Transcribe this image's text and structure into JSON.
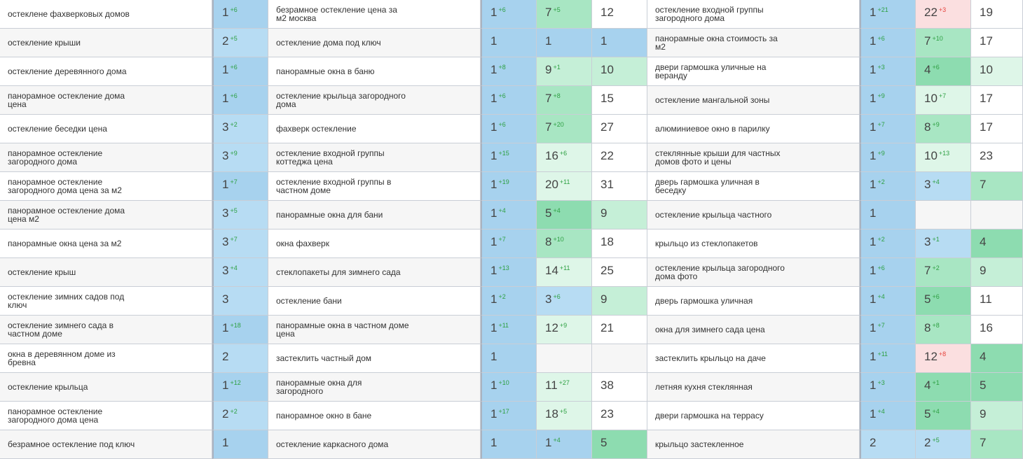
{
  "rows": [
    {
      "a": {
        "kw": "остеклене фахверковых домов",
        "p": {
          "v": "1",
          "d": "+6",
          "t": "up",
          "c": "blue1"
        }
      },
      "b": {
        "kw": "безрамное остекление цена за м2 москва",
        "p1": {
          "v": "1",
          "d": "+6",
          "t": "up",
          "c": "blue1"
        },
        "p2": {
          "v": "7",
          "d": "+5",
          "t": "up",
          "c": "green2"
        },
        "p3": {
          "v": "12",
          "d": "",
          "t": "",
          "c": "white"
        }
      },
      "c": {
        "kw": "остекление входной группы загородного дома",
        "p1": {
          "v": "1",
          "d": "+21",
          "t": "up",
          "c": "blue1"
        },
        "p2": {
          "v": "22",
          "d": "+3",
          "t": "dn",
          "c": "pink"
        },
        "p3": {
          "v": "19",
          "d": "",
          "t": "",
          "c": "white"
        }
      }
    },
    {
      "a": {
        "kw": "остекление крыши",
        "p": {
          "v": "2",
          "d": "+5",
          "t": "up",
          "c": "blue2"
        }
      },
      "b": {
        "kw": "остекление дома под ключ",
        "p1": {
          "v": "1",
          "d": "",
          "t": "",
          "c": "blue1"
        },
        "p2": {
          "v": "1",
          "d": "",
          "t": "",
          "c": "blue1"
        },
        "p3": {
          "v": "1",
          "d": "",
          "t": "",
          "c": "blue1"
        }
      },
      "c": {
        "kw": "панорамные окна стоимость за м2",
        "p1": {
          "v": "1",
          "d": "+6",
          "t": "up",
          "c": "blue1"
        },
        "p2": {
          "v": "7",
          "d": "+10",
          "t": "up",
          "c": "green2"
        },
        "p3": {
          "v": "17",
          "d": "",
          "t": "",
          "c": "white"
        }
      }
    },
    {
      "a": {
        "kw": "остекление деревянного дома",
        "p": {
          "v": "1",
          "d": "+6",
          "t": "up",
          "c": "blue1"
        }
      },
      "b": {
        "kw": "панорамные окна в баню",
        "p1": {
          "v": "1",
          "d": "+8",
          "t": "up",
          "c": "blue1"
        },
        "p2": {
          "v": "9",
          "d": "+1",
          "t": "up",
          "c": "green3"
        },
        "p3": {
          "v": "10",
          "d": "",
          "t": "",
          "c": "green3"
        }
      },
      "c": {
        "kw": "двери гармошка уличные на веранду",
        "p1": {
          "v": "1",
          "d": "+3",
          "t": "up",
          "c": "blue1"
        },
        "p2": {
          "v": "4",
          "d": "+6",
          "t": "up",
          "c": "green1"
        },
        "p3": {
          "v": "10",
          "d": "",
          "t": "",
          "c": "green4"
        }
      }
    },
    {
      "a": {
        "kw": "панорамное остекление дома цена",
        "p": {
          "v": "1",
          "d": "+6",
          "t": "up",
          "c": "blue1"
        }
      },
      "b": {
        "kw": "остекление крыльца загородного дома",
        "p1": {
          "v": "1",
          "d": "+6",
          "t": "up",
          "c": "blue1"
        },
        "p2": {
          "v": "7",
          "d": "+8",
          "t": "up",
          "c": "green2"
        },
        "p3": {
          "v": "15",
          "d": "",
          "t": "",
          "c": "white"
        }
      },
      "c": {
        "kw": "остекление мангальной зоны",
        "p1": {
          "v": "1",
          "d": "+9",
          "t": "up",
          "c": "blue1"
        },
        "p2": {
          "v": "10",
          "d": "+7",
          "t": "up",
          "c": "green4"
        },
        "p3": {
          "v": "17",
          "d": "",
          "t": "",
          "c": "white"
        }
      }
    },
    {
      "a": {
        "kw": "остекление беседки цена",
        "p": {
          "v": "3",
          "d": "+2",
          "t": "up",
          "c": "blue2"
        }
      },
      "b": {
        "kw": "фахверк остекление",
        "p1": {
          "v": "1",
          "d": "+6",
          "t": "up",
          "c": "blue1"
        },
        "p2": {
          "v": "7",
          "d": "+20",
          "t": "up",
          "c": "green2"
        },
        "p3": {
          "v": "27",
          "d": "",
          "t": "",
          "c": "white"
        }
      },
      "c": {
        "kw": "алюминиевое окно в парилку",
        "p1": {
          "v": "1",
          "d": "+7",
          "t": "up",
          "c": "blue1"
        },
        "p2": {
          "v": "8",
          "d": "+9",
          "t": "up",
          "c": "green2"
        },
        "p3": {
          "v": "17",
          "d": "",
          "t": "",
          "c": "white"
        }
      }
    },
    {
      "a": {
        "kw": "панорамное остекление загородного дома",
        "p": {
          "v": "3",
          "d": "+9",
          "t": "up",
          "c": "blue2"
        }
      },
      "b": {
        "kw": "остекление входной группы коттеджа цена",
        "p1": {
          "v": "1",
          "d": "+15",
          "t": "up",
          "c": "blue1"
        },
        "p2": {
          "v": "16",
          "d": "+6",
          "t": "up",
          "c": "green4"
        },
        "p3": {
          "v": "22",
          "d": "",
          "t": "",
          "c": "white"
        }
      },
      "c": {
        "kw": "стеклянные крыши для частных домов фото и цены",
        "p1": {
          "v": "1",
          "d": "+9",
          "t": "up",
          "c": "blue1"
        },
        "p2": {
          "v": "10",
          "d": "+13",
          "t": "up",
          "c": "green4"
        },
        "p3": {
          "v": "23",
          "d": "",
          "t": "",
          "c": "white"
        }
      }
    },
    {
      "a": {
        "kw": "панорамное остекление загородного дома цена за м2",
        "p": {
          "v": "1",
          "d": "+7",
          "t": "up",
          "c": "blue1"
        }
      },
      "b": {
        "kw": "остекление входной группы в частном доме",
        "p1": {
          "v": "1",
          "d": "+19",
          "t": "up",
          "c": "blue1"
        },
        "p2": {
          "v": "20",
          "d": "+11",
          "t": "up",
          "c": "green4"
        },
        "p3": {
          "v": "31",
          "d": "",
          "t": "",
          "c": "white"
        }
      },
      "c": {
        "kw": "дверь гармошка уличная в беседку",
        "p1": {
          "v": "1",
          "d": "+2",
          "t": "up",
          "c": "blue1"
        },
        "p2": {
          "v": "3",
          "d": "+4",
          "t": "up",
          "c": "blue2"
        },
        "p3": {
          "v": "7",
          "d": "",
          "t": "",
          "c": "green2"
        }
      }
    },
    {
      "a": {
        "kw": "панорамное остекление дома цена м2",
        "p": {
          "v": "3",
          "d": "+5",
          "t": "up",
          "c": "blue2"
        }
      },
      "b": {
        "kw": "панорамные окна для бани",
        "p1": {
          "v": "1",
          "d": "+4",
          "t": "up",
          "c": "blue1"
        },
        "p2": {
          "v": "5",
          "d": "+4",
          "t": "up",
          "c": "green1"
        },
        "p3": {
          "v": "9",
          "d": "",
          "t": "",
          "c": "green3"
        }
      },
      "c": {
        "kw": "остекление крыльца частного",
        "p1": {
          "v": "1",
          "d": "",
          "t": "",
          "c": "blue1"
        },
        "p2": {
          "v": "",
          "d": "",
          "t": "",
          "c": "grey"
        },
        "p3": {
          "v": "",
          "d": "",
          "t": "",
          "c": "grey"
        }
      }
    },
    {
      "a": {
        "kw": "панорамные окна цена за м2",
        "p": {
          "v": "3",
          "d": "+7",
          "t": "up",
          "c": "blue2"
        }
      },
      "b": {
        "kw": "окна фахверк",
        "p1": {
          "v": "1",
          "d": "+7",
          "t": "up",
          "c": "blue1"
        },
        "p2": {
          "v": "8",
          "d": "+10",
          "t": "up",
          "c": "green2"
        },
        "p3": {
          "v": "18",
          "d": "",
          "t": "",
          "c": "white"
        }
      },
      "c": {
        "kw": "крыльцо из стеклопакетов",
        "p1": {
          "v": "1",
          "d": "+2",
          "t": "up",
          "c": "blue1"
        },
        "p2": {
          "v": "3",
          "d": "+1",
          "t": "up",
          "c": "blue2"
        },
        "p3": {
          "v": "4",
          "d": "",
          "t": "",
          "c": "green1"
        }
      }
    },
    {
      "a": {
        "kw": "остекление крыш",
        "p": {
          "v": "3",
          "d": "+4",
          "t": "up",
          "c": "blue2"
        }
      },
      "b": {
        "kw": "стеклопакеты для зимнего сада",
        "p1": {
          "v": "1",
          "d": "+13",
          "t": "up",
          "c": "blue1"
        },
        "p2": {
          "v": "14",
          "d": "+11",
          "t": "up",
          "c": "green4"
        },
        "p3": {
          "v": "25",
          "d": "",
          "t": "",
          "c": "white"
        }
      },
      "c": {
        "kw": "остекление крыльца загородного дома фото",
        "p1": {
          "v": "1",
          "d": "+6",
          "t": "up",
          "c": "blue1"
        },
        "p2": {
          "v": "7",
          "d": "+2",
          "t": "up",
          "c": "green2"
        },
        "p3": {
          "v": "9",
          "d": "",
          "t": "",
          "c": "green3"
        }
      }
    },
    {
      "a": {
        "kw": "остекление зимних садов под ключ",
        "p": {
          "v": "3",
          "d": "",
          "t": "",
          "c": "blue2"
        }
      },
      "b": {
        "kw": "остекление бани",
        "p1": {
          "v": "1",
          "d": "+2",
          "t": "up",
          "c": "blue1"
        },
        "p2": {
          "v": "3",
          "d": "+6",
          "t": "up",
          "c": "blue2"
        },
        "p3": {
          "v": "9",
          "d": "",
          "t": "",
          "c": "green3"
        }
      },
      "c": {
        "kw": "дверь гармошка уличная",
        "p1": {
          "v": "1",
          "d": "+4",
          "t": "up",
          "c": "blue1"
        },
        "p2": {
          "v": "5",
          "d": "+6",
          "t": "up",
          "c": "green1"
        },
        "p3": {
          "v": "11",
          "d": "",
          "t": "",
          "c": "white"
        }
      }
    },
    {
      "a": {
        "kw": "остекление зимнего сада в частном доме",
        "p": {
          "v": "1",
          "d": "+18",
          "t": "up",
          "c": "blue1"
        }
      },
      "b": {
        "kw": "панорамные окна в частном доме цена",
        "p1": {
          "v": "1",
          "d": "+11",
          "t": "up",
          "c": "blue1"
        },
        "p2": {
          "v": "12",
          "d": "+9",
          "t": "up",
          "c": "green4"
        },
        "p3": {
          "v": "21",
          "d": "",
          "t": "",
          "c": "white"
        }
      },
      "c": {
        "kw": "окна для зимнего сада цена",
        "p1": {
          "v": "1",
          "d": "+7",
          "t": "up",
          "c": "blue1"
        },
        "p2": {
          "v": "8",
          "d": "+8",
          "t": "up",
          "c": "green2"
        },
        "p3": {
          "v": "16",
          "d": "",
          "t": "",
          "c": "white"
        }
      }
    },
    {
      "a": {
        "kw": "окна в деревянном доме из бревна",
        "p": {
          "v": "2",
          "d": "",
          "t": "",
          "c": "blue2"
        }
      },
      "b": {
        "kw": "застеклить частный дом",
        "p1": {
          "v": "1",
          "d": "",
          "t": "",
          "c": "blue1"
        },
        "p2": {
          "v": "",
          "d": "",
          "t": "",
          "c": "grey"
        },
        "p3": {
          "v": "",
          "d": "",
          "t": "",
          "c": "grey"
        }
      },
      "c": {
        "kw": "застеклить крыльцо на даче",
        "p1": {
          "v": "1",
          "d": "+11",
          "t": "up",
          "c": "blue1"
        },
        "p2": {
          "v": "12",
          "d": "+8",
          "t": "dn",
          "c": "pink"
        },
        "p3": {
          "v": "4",
          "d": "",
          "t": "",
          "c": "green1"
        }
      }
    },
    {
      "a": {
        "kw": "остекление крыльца",
        "p": {
          "v": "1",
          "d": "+12",
          "t": "up",
          "c": "blue1"
        }
      },
      "b": {
        "kw": "панорамные окна для загородного",
        "p1": {
          "v": "1",
          "d": "+10",
          "t": "up",
          "c": "blue1"
        },
        "p2": {
          "v": "11",
          "d": "+27",
          "t": "up",
          "c": "green4"
        },
        "p3": {
          "v": "38",
          "d": "",
          "t": "",
          "c": "white"
        }
      },
      "c": {
        "kw": "летняя кухня стеклянная",
        "p1": {
          "v": "1",
          "d": "+3",
          "t": "up",
          "c": "blue1"
        },
        "p2": {
          "v": "4",
          "d": "+1",
          "t": "up",
          "c": "green1"
        },
        "p3": {
          "v": "5",
          "d": "",
          "t": "",
          "c": "green1"
        }
      }
    },
    {
      "a": {
        "kw": "панорамное остекление загородного дома цена",
        "p": {
          "v": "2",
          "d": "+2",
          "t": "up",
          "c": "blue2"
        }
      },
      "b": {
        "kw": "панорамное окно в бане",
        "p1": {
          "v": "1",
          "d": "+17",
          "t": "up",
          "c": "blue1"
        },
        "p2": {
          "v": "18",
          "d": "+5",
          "t": "up",
          "c": "green4"
        },
        "p3": {
          "v": "23",
          "d": "",
          "t": "",
          "c": "white"
        }
      },
      "c": {
        "kw": "двери гармошка на террасу",
        "p1": {
          "v": "1",
          "d": "+4",
          "t": "up",
          "c": "blue1"
        },
        "p2": {
          "v": "5",
          "d": "+4",
          "t": "up",
          "c": "green1"
        },
        "p3": {
          "v": "9",
          "d": "",
          "t": "",
          "c": "green3"
        }
      }
    },
    {
      "a": {
        "kw": "безрамное остекление под ключ",
        "p": {
          "v": "1",
          "d": "",
          "t": "",
          "c": "blue1"
        }
      },
      "b": {
        "kw": "остекление каркасного дома",
        "p1": {
          "v": "1",
          "d": "",
          "t": "",
          "c": "blue1"
        },
        "p2": {
          "v": "1",
          "d": "+4",
          "t": "up",
          "c": "blue1"
        },
        "p3": {
          "v": "5",
          "d": "",
          "t": "",
          "c": "green1"
        }
      },
      "c": {
        "kw": "крыльцо застекленное",
        "p1": {
          "v": "2",
          "d": "",
          "t": "",
          "c": "blue2"
        },
        "p2": {
          "v": "2",
          "d": "+5",
          "t": "up",
          "c": "blue2"
        },
        "p3": {
          "v": "7",
          "d": "",
          "t": "",
          "c": "green2"
        }
      }
    }
  ]
}
